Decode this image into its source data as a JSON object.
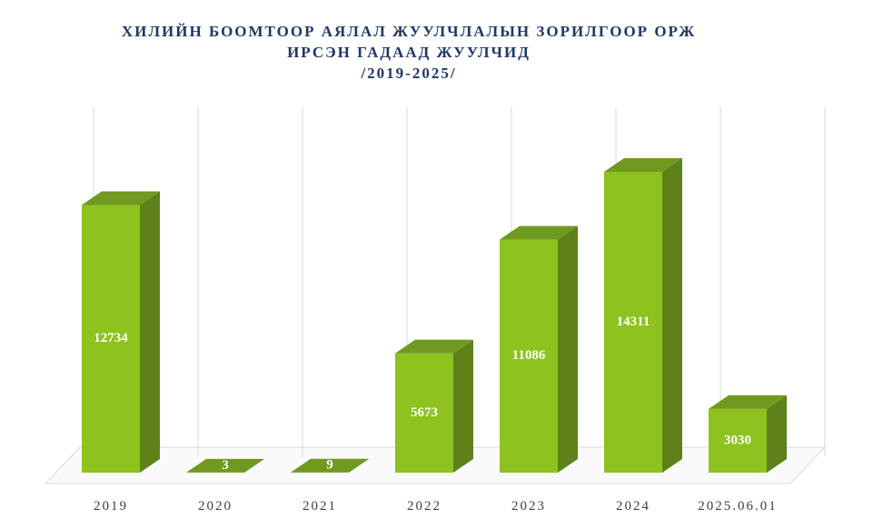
{
  "chart_data": {
    "type": "bar3d",
    "title": [
      "ХИЛИЙН БООМТООР АЯЛАЛ ЖУУЛЧЛАЛЫН ЗОРИЛГООР ОРЖ",
      "ИРСЭН ГАДААД ЖУУЛЧИД",
      "/2019-2025/"
    ],
    "categories": [
      "2019",
      "2020",
      "2021",
      "2022",
      "2023",
      "2024",
      "2025.06.01"
    ],
    "values": [
      12734,
      3,
      9,
      5673,
      11086,
      14311,
      3030
    ],
    "color": "#8dc21f",
    "side_color": "#5e8219",
    "top_color": "#6f9a1f"
  }
}
